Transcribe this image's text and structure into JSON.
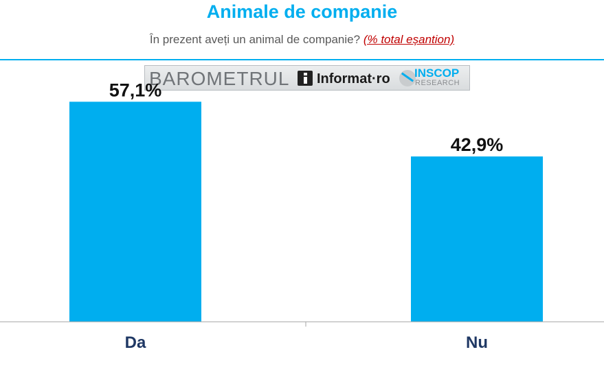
{
  "header": {
    "title": "Animale de companie",
    "question": "În prezent aveți un animal de companie?",
    "note": "(% total eșantion)"
  },
  "banner": {
    "barometrul": "BAROMETRUL",
    "informat": "Informat·ro",
    "inscop": "INSCOP",
    "research": "RESEARCH"
  },
  "colors": {
    "accent": "#00aeef",
    "bar": "#00aeef",
    "note": "#c00000"
  },
  "chart_data": {
    "type": "bar",
    "categories": [
      "Da",
      "Nu"
    ],
    "values": [
      57.1,
      42.9
    ],
    "value_labels": [
      "57,1%",
      "42,9%"
    ],
    "title": "Animale de companie",
    "ylim": [
      0,
      60
    ],
    "grid": false
  }
}
